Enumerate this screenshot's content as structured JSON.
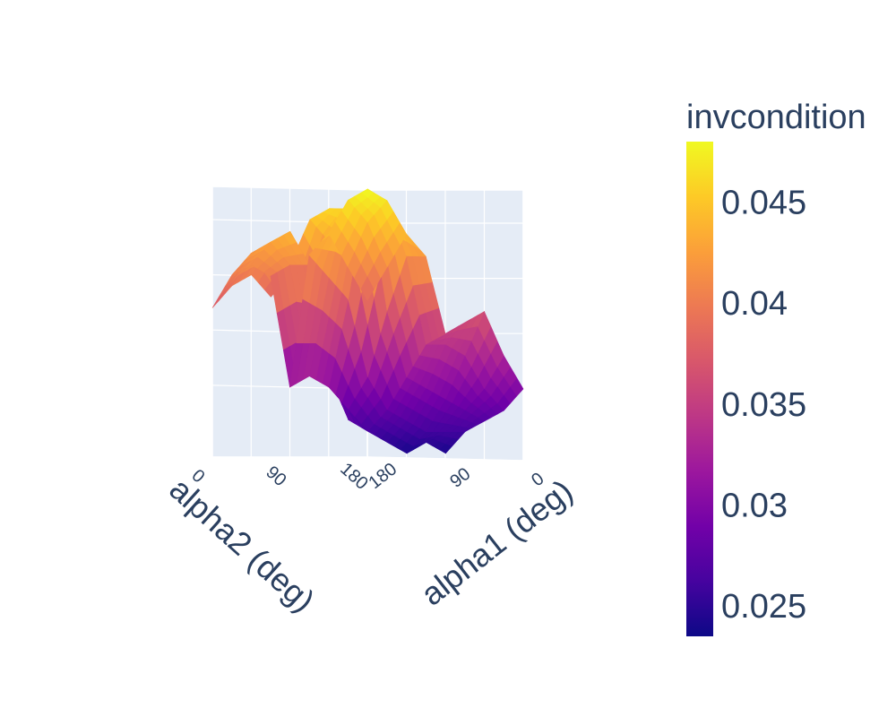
{
  "chart_data": {
    "type": "surface",
    "title": "",
    "x_axis": {
      "title": "alpha1 (deg)",
      "ticks": [
        "0",
        "90",
        "180"
      ],
      "range": [
        0,
        180
      ]
    },
    "y_axis": {
      "title": "alpha2 (deg)",
      "ticks": [
        "0",
        "90",
        "180"
      ],
      "range": [
        0,
        180
      ]
    },
    "z_axis": {
      "title": "",
      "range": [
        0.0235,
        0.048
      ]
    },
    "x": [
      0,
      22.5,
      45,
      67.5,
      90,
      112.5,
      135,
      157.5,
      180
    ],
    "y": [
      0,
      22.5,
      45,
      67.5,
      90,
      112.5,
      135,
      157.5,
      180
    ],
    "z": [
      [
        0.038,
        0.041,
        0.044,
        0.042,
        0.03,
        0.04,
        0.041,
        0.04,
        0.037
      ],
      [
        0.041,
        0.045,
        0.047,
        0.04,
        0.031,
        0.041,
        0.043,
        0.042,
        0.039
      ],
      [
        0.044,
        0.047,
        0.048,
        0.038,
        0.03,
        0.041,
        0.044,
        0.043,
        0.04
      ],
      [
        0.042,
        0.042,
        0.037,
        0.031,
        0.028,
        0.032,
        0.036,
        0.04,
        0.038
      ],
      [
        0.035,
        0.034,
        0.031,
        0.028,
        0.026,
        0.027,
        0.031,
        0.036,
        0.041
      ],
      [
        0.036,
        0.034,
        0.03,
        0.027,
        0.025,
        0.027,
        0.034,
        0.043,
        0.045
      ],
      [
        0.037,
        0.033,
        0.029,
        0.026,
        0.024,
        0.028,
        0.038,
        0.046,
        0.046
      ],
      [
        0.033,
        0.03,
        0.028,
        0.026,
        0.025,
        0.03,
        0.04,
        0.044,
        0.043
      ],
      [
        0.03,
        0.028,
        0.027,
        0.026,
        0.024,
        0.029,
        0.035,
        0.039,
        0.036
      ]
    ],
    "colorscale": "Plasma",
    "colors": [
      "#0d0887",
      "#46039f",
      "#7201a8",
      "#9c179e",
      "#bd3786",
      "#d8576b",
      "#ed7953",
      "#fb9f3a",
      "#fdca26",
      "#f0f921"
    ],
    "colorbar": {
      "title": "invcondition",
      "range": [
        0.0235,
        0.048
      ],
      "ticks": [
        0.025,
        0.03,
        0.035,
        0.04,
        0.045
      ],
      "tick_labels": [
        "0.025",
        "0.03",
        "0.035",
        "0.04",
        "0.045"
      ]
    },
    "scene_background": "#e5ecf6",
    "grid": true
  }
}
